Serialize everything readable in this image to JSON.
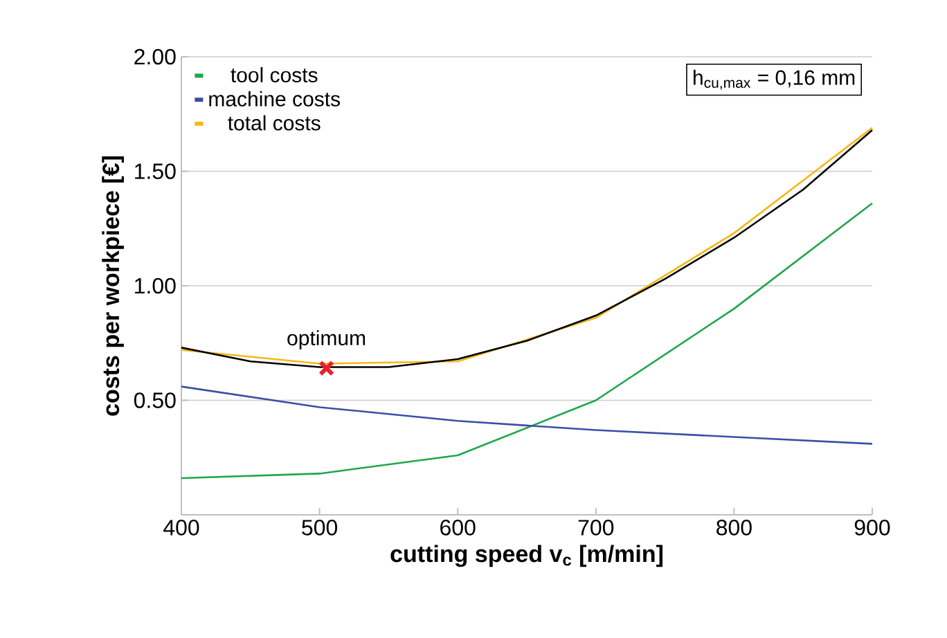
{
  "chart_data": {
    "type": "line",
    "xlabel": "cutting speed v$_{c}$ [m/min]",
    "ylabel": "costs per workpiece [€]",
    "xlim": [
      400,
      900
    ],
    "xticks": [
      400,
      500,
      600,
      700,
      800,
      900
    ],
    "ylim": [
      0,
      2
    ],
    "yticks": [
      {
        "value": 0,
        "label": null
      },
      {
        "value": 0.5,
        "label": "0.50"
      },
      {
        "value": 1,
        "label": "1.00"
      },
      {
        "value": 1.5,
        "label": "1.50"
      },
      {
        "value": 2,
        "label": "2.00"
      }
    ],
    "grid": "y",
    "legend": "top left",
    "annotations": [
      {
        "text": "optimum",
        "x": 505,
        "y": 0.64
      },
      "h$_{cu,max}$ = 0,16 mm"
    ],
    "series": [
      {
        "name": "tool costs",
        "color": "#1fa64a",
        "x": [
          400,
          500,
          600,
          700,
          800,
          900
        ],
        "values": [
          0.16,
          0.18,
          0.26,
          0.5,
          0.9,
          1.36
        ]
      },
      {
        "name": "machine costs",
        "color": "#3a4fa5",
        "x": [
          400,
          500,
          600,
          700,
          800,
          900
        ],
        "values": [
          0.56,
          0.47,
          0.41,
          0.37,
          0.34,
          0.31
        ]
      },
      {
        "name": "total costs",
        "color": "#f7b718",
        "x": [
          400,
          500,
          600,
          700,
          800,
          900
        ],
        "values": [
          0.72,
          0.66,
          0.67,
          0.86,
          1.23,
          1.69
        ]
      },
      {
        "color": "#000000",
        "x": [
          400,
          450,
          500,
          550,
          600,
          650,
          700,
          750,
          800,
          850,
          900
        ],
        "values": [
          0.73,
          0.67,
          0.645,
          0.645,
          0.68,
          0.76,
          0.87,
          1.03,
          1.21,
          1.42,
          1.68
        ]
      },
      {
        "type": "scatter",
        "marker": "cross",
        "color": "#e8202a",
        "x": [
          505
        ],
        "values": [
          0.64
        ]
      }
    ]
  }
}
